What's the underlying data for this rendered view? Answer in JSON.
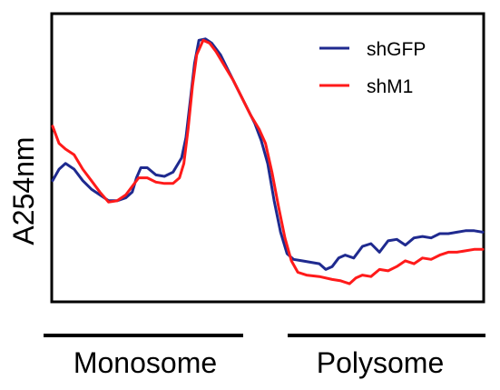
{
  "chart_data": {
    "type": "line",
    "ylabel": "A254nm",
    "xlim": [
      0,
      100
    ],
    "ylim": [
      0,
      100
    ],
    "grid": false,
    "legend_position": "top-right",
    "series": [
      {
        "name": "shGFP",
        "color": "#1f2a8f",
        "points": [
          [
            0,
            42
          ],
          [
            1.5,
            46
          ],
          [
            3,
            48
          ],
          [
            5,
            46
          ],
          [
            7,
            42
          ],
          [
            9,
            39
          ],
          [
            11,
            37
          ],
          [
            13,
            35
          ],
          [
            15,
            35
          ],
          [
            17,
            36
          ],
          [
            18.5,
            38
          ],
          [
            19.5,
            43
          ],
          [
            20.5,
            46.5
          ],
          [
            22,
            46.5
          ],
          [
            24,
            44
          ],
          [
            26,
            43.5
          ],
          [
            28,
            45
          ],
          [
            30,
            50
          ],
          [
            31,
            57
          ],
          [
            32,
            70
          ],
          [
            33,
            83
          ],
          [
            34,
            91
          ],
          [
            35.5,
            91.5
          ],
          [
            37,
            90
          ],
          [
            39,
            86
          ],
          [
            41,
            80
          ],
          [
            43,
            74
          ],
          [
            45,
            68
          ],
          [
            47,
            62
          ],
          [
            48.5,
            56
          ],
          [
            50,
            48
          ],
          [
            51.5,
            35
          ],
          [
            53,
            24
          ],
          [
            54.5,
            16.5
          ],
          [
            56,
            14.5
          ],
          [
            58,
            14
          ],
          [
            60,
            13.5
          ],
          [
            62,
            13
          ],
          [
            63.5,
            11
          ],
          [
            65,
            12
          ],
          [
            66.5,
            15
          ],
          [
            68,
            16
          ],
          [
            70,
            15
          ],
          [
            72,
            19
          ],
          [
            74,
            20
          ],
          [
            76,
            17
          ],
          [
            78,
            21
          ],
          [
            80,
            21.5
          ],
          [
            82,
            19.5
          ],
          [
            84,
            22
          ],
          [
            86,
            22.5
          ],
          [
            88,
            22
          ],
          [
            90,
            23.5
          ],
          [
            92,
            23.5
          ],
          [
            94,
            24
          ],
          [
            96,
            24.5
          ],
          [
            98,
            24.5
          ],
          [
            100,
            24
          ]
        ]
      },
      {
        "name": "shM1",
        "color": "#ff1a1a",
        "points": [
          [
            0,
            61
          ],
          [
            1.5,
            55
          ],
          [
            3,
            53
          ],
          [
            5,
            51
          ],
          [
            7,
            46
          ],
          [
            9,
            42
          ],
          [
            11,
            38
          ],
          [
            13,
            34.5
          ],
          [
            15,
            35
          ],
          [
            17,
            37
          ],
          [
            18.5,
            40
          ],
          [
            20,
            43
          ],
          [
            22,
            43
          ],
          [
            24,
            41.5
          ],
          [
            26,
            41
          ],
          [
            28,
            41
          ],
          [
            29.5,
            43
          ],
          [
            30.5,
            48
          ],
          [
            31.5,
            60
          ],
          [
            32.5,
            75
          ],
          [
            33.5,
            86
          ],
          [
            35,
            91
          ],
          [
            36.5,
            90
          ],
          [
            38,
            87
          ],
          [
            40,
            82
          ],
          [
            42,
            77
          ],
          [
            44,
            71
          ],
          [
            46,
            65
          ],
          [
            48,
            60
          ],
          [
            49.5,
            55
          ],
          [
            51,
            45
          ],
          [
            52.5,
            33
          ],
          [
            54,
            22
          ],
          [
            55.5,
            14
          ],
          [
            57,
            10
          ],
          [
            59,
            9
          ],
          [
            62,
            8.5
          ],
          [
            65,
            7.5
          ],
          [
            67,
            7
          ],
          [
            69,
            6
          ],
          [
            70.5,
            8
          ],
          [
            72,
            9
          ],
          [
            74,
            8.5
          ],
          [
            76,
            11
          ],
          [
            78,
            10.5
          ],
          [
            80,
            12
          ],
          [
            82,
            14
          ],
          [
            84,
            13
          ],
          [
            86,
            15
          ],
          [
            88,
            14.5
          ],
          [
            90,
            16
          ],
          [
            92,
            17
          ],
          [
            94,
            17
          ],
          [
            96,
            17.5
          ],
          [
            98,
            18
          ],
          [
            100,
            18
          ]
        ]
      }
    ]
  },
  "fractions": {
    "monosome_label": "Monosome",
    "polysome_label": "Polysome"
  }
}
